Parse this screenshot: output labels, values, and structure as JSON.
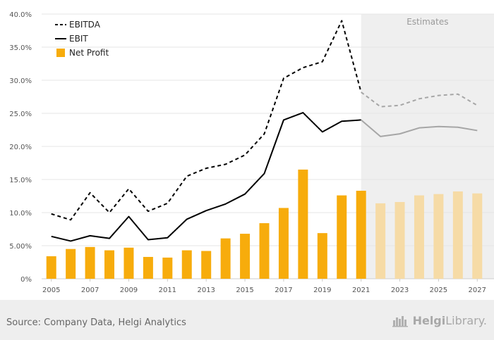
{
  "chart_data": {
    "type": "bar+line",
    "categories": [
      "2005",
      "2006",
      "2007",
      "2008",
      "2009",
      "2010",
      "2011",
      "2012",
      "2013",
      "2014",
      "2015",
      "2016",
      "2017",
      "2018",
      "2019",
      "2020",
      "2021",
      "2022",
      "2023",
      "2024",
      "2025",
      "2026",
      "2027"
    ],
    "x_tick_labels": [
      "2005",
      "2007",
      "2009",
      "2011",
      "2013",
      "2015",
      "2017",
      "2019",
      "2021",
      "2023",
      "2025",
      "2027"
    ],
    "y_tick_labels": [
      "0%",
      "5.00%",
      "10.0%",
      "15.0%",
      "20.0%",
      "25.0%",
      "30.0%",
      "35.0%",
      "40.0%"
    ],
    "ylim": [
      0,
      40
    ],
    "grid": true,
    "legend_position": "top-left",
    "estimates_from": "2021",
    "estimates_label": "Estimates",
    "series": [
      {
        "name": "EBITDA",
        "kind": "line-dashed",
        "color": "#000000",
        "estimate_color": "#a6a6a6",
        "values": [
          9.8,
          8.9,
          13.0,
          10.0,
          13.6,
          10.2,
          11.4,
          15.5,
          16.7,
          17.3,
          18.7,
          21.9,
          30.3,
          31.9,
          32.8,
          39.0,
          28.2,
          26.0,
          26.2,
          27.2,
          27.7,
          27.9,
          26.2
        ]
      },
      {
        "name": "EBIT",
        "kind": "line",
        "color": "#000000",
        "estimate_color": "#a6a6a6",
        "values": [
          6.4,
          5.7,
          6.5,
          6.1,
          9.4,
          5.9,
          6.2,
          9.0,
          10.3,
          11.3,
          12.8,
          15.9,
          24.0,
          25.1,
          22.2,
          23.8,
          24.0,
          21.5,
          21.9,
          22.8,
          23.0,
          22.9,
          22.4
        ]
      },
      {
        "name": "Net Profit",
        "kind": "bar",
        "color": "#f7ac0c",
        "estimate_color": "#f6dba6",
        "values": [
          3.4,
          4.5,
          4.8,
          4.3,
          4.7,
          3.3,
          3.2,
          4.3,
          4.2,
          6.1,
          6.8,
          8.4,
          10.7,
          16.5,
          6.9,
          12.6,
          13.3,
          11.4,
          11.6,
          12.6,
          12.8,
          13.2,
          12.9
        ]
      }
    ]
  },
  "footer": {
    "source": "Source: Company Data, Helgi Analytics",
    "brand_bold": "Helgi",
    "brand_rest": "Library."
  },
  "icons": {
    "brand": "helgi-logo-icon"
  }
}
